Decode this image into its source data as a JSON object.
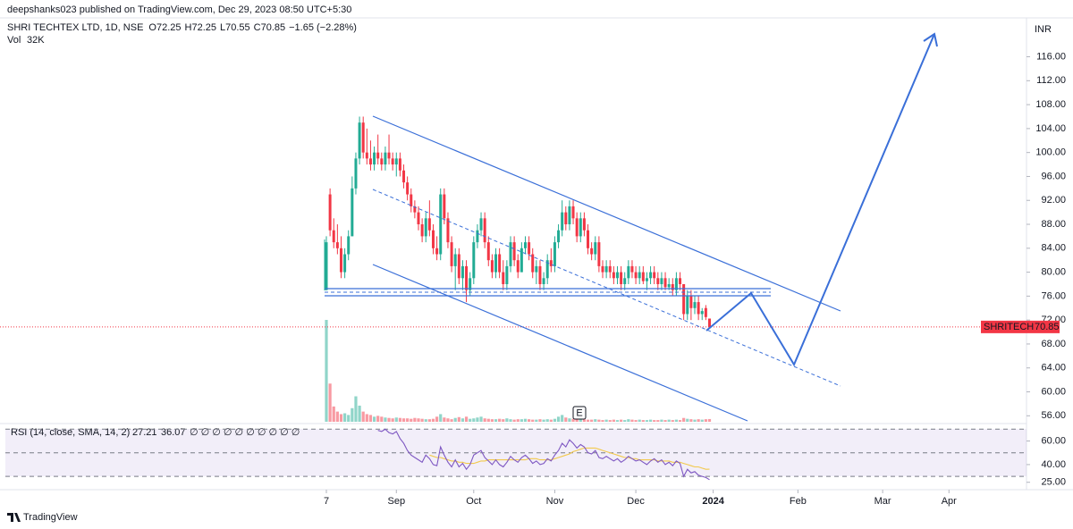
{
  "chart_data": {
    "type": "candlestick",
    "publisher": "deepshanks023 published on TradingView.com, Dec 29, 2023 08:50 UTC+5:30",
    "symbol": "SHRI TECHTEX LTD, 1D, NSE",
    "ohlc_labels": [
      "O",
      "H",
      "L",
      "C"
    ],
    "ohlc": [
      72.25,
      72.25,
      70.55,
      70.85
    ],
    "change_label": "−1.65 (−2.28%)",
    "volume_title": "Vol",
    "volume_last_label": "32K",
    "currency": "INR",
    "last_label": "SHRITECH",
    "up_color": "#22ab94",
    "down_color": "#f23645",
    "ylim": [
      55,
      122.5
    ],
    "yticks": [
      {
        "value": 116,
        "label": "116.00"
      },
      {
        "value": 112,
        "label": "112.00"
      },
      {
        "value": 108,
        "label": "108.00"
      },
      {
        "value": 104,
        "label": "104.00"
      },
      {
        "value": 100,
        "label": "100.00"
      },
      {
        "value": 96,
        "label": "96.00"
      },
      {
        "value": 92,
        "label": "92.00"
      },
      {
        "value": 88,
        "label": "88.00"
      },
      {
        "value": 84,
        "label": "84.00"
      },
      {
        "value": 80,
        "label": "80.00"
      },
      {
        "value": 76,
        "label": "76.00"
      },
      {
        "value": 72,
        "label": "72.00"
      },
      {
        "value": 68,
        "label": "68.00"
      },
      {
        "value": 64,
        "label": "64.00"
      },
      {
        "value": 60,
        "label": "60.00"
      },
      {
        "value": 56,
        "label": "56.00"
      }
    ],
    "xticks": [
      {
        "value": 0,
        "label": "7"
      },
      {
        "value": 19,
        "label": "Sep"
      },
      {
        "value": 40,
        "label": "Oct"
      },
      {
        "value": 62,
        "label": "Nov"
      },
      {
        "value": 84,
        "label": "Dec"
      },
      {
        "value": 105,
        "label": "2024"
      },
      {
        "value": 128,
        "label": "Feb"
      },
      {
        "value": 151,
        "label": "Mar"
      },
      {
        "value": 169,
        "label": "Apr"
      }
    ],
    "earnings_marker": "E",
    "candles": [
      [
        77,
        86,
        77,
        85
      ],
      [
        93,
        94,
        86,
        87
      ],
      [
        87,
        89,
        84,
        85
      ],
      [
        85,
        88,
        83,
        84
      ],
      [
        84,
        86,
        79,
        80
      ],
      [
        80,
        84,
        79,
        83
      ],
      [
        83,
        87,
        82,
        86
      ],
      [
        86,
        96,
        86,
        94
      ],
      [
        94,
        100,
        93,
        99
      ],
      [
        99,
        106,
        98,
        105
      ],
      [
        105,
        106,
        99,
        100
      ],
      [
        100,
        104,
        98,
        99
      ],
      [
        99,
        102,
        97,
        98
      ],
      [
        98,
        101,
        97,
        100
      ],
      [
        100,
        103,
        98,
        99
      ],
      [
        99,
        100,
        97,
        98
      ],
      [
        98,
        101,
        97,
        100
      ],
      [
        100,
        103,
        98,
        99
      ],
      [
        99,
        100,
        97,
        98
      ],
      [
        98,
        100,
        96,
        99
      ],
      [
        99,
        100,
        96,
        97
      ],
      [
        97,
        98,
        94,
        95
      ],
      [
        95,
        96,
        92,
        93
      ],
      [
        93,
        94,
        90,
        91
      ],
      [
        91,
        92,
        89,
        90
      ],
      [
        90,
        91,
        87,
        88
      ],
      [
        88,
        89,
        85,
        86
      ],
      [
        86,
        90,
        85,
        89
      ],
      [
        89,
        92,
        86,
        87
      ],
      [
        87,
        88,
        83,
        84
      ],
      [
        84,
        86,
        82,
        83
      ],
      [
        83,
        94,
        82,
        93
      ],
      [
        93,
        94,
        88,
        89
      ],
      [
        89,
        90,
        84,
        85
      ],
      [
        85,
        86,
        80,
        81
      ],
      [
        81,
        84,
        77,
        83
      ],
      [
        83,
        84,
        78,
        79
      ],
      [
        79,
        82,
        77,
        81
      ],
      [
        81,
        82,
        75,
        77
      ],
      [
        77,
        80,
        76,
        79
      ],
      [
        79,
        86,
        78,
        85
      ],
      [
        85,
        88,
        84,
        87
      ],
      [
        87,
        90,
        86,
        89
      ],
      [
        89,
        90,
        84,
        85
      ],
      [
        85,
        86,
        81,
        82
      ],
      [
        82,
        83,
        79,
        80
      ],
      [
        80,
        84,
        79,
        83
      ],
      [
        83,
        84,
        79,
        80
      ],
      [
        80,
        82,
        77,
        78
      ],
      [
        78,
        82,
        77,
        81
      ],
      [
        81,
        86,
        80,
        85
      ],
      [
        85,
        86,
        81,
        82
      ],
      [
        82,
        83,
        79,
        80
      ],
      [
        80,
        85,
        80,
        84
      ],
      [
        84,
        86,
        83,
        85
      ],
      [
        85,
        86,
        82,
        83
      ],
      [
        83,
        84,
        79,
        80
      ],
      [
        80,
        82,
        78,
        81
      ],
      [
        81,
        82,
        77,
        78
      ],
      [
        78,
        80,
        77,
        79
      ],
      [
        79,
        83,
        78,
        82
      ],
      [
        82,
        84,
        80,
        81
      ],
      [
        81,
        86,
        80,
        85
      ],
      [
        85,
        88,
        84,
        87
      ],
      [
        87,
        92,
        86,
        90
      ],
      [
        90,
        91,
        87,
        88
      ],
      [
        88,
        92,
        87,
        91
      ],
      [
        91,
        92,
        88,
        89
      ],
      [
        89,
        90,
        85,
        86
      ],
      [
        86,
        90,
        85,
        89
      ],
      [
        89,
        90,
        86,
        87
      ],
      [
        87,
        88,
        83,
        84
      ],
      [
        84,
        85,
        82,
        83
      ],
      [
        83,
        86,
        82,
        85
      ],
      [
        85,
        86,
        80,
        81
      ],
      [
        81,
        82,
        79,
        80
      ],
      [
        80,
        82,
        79,
        81
      ],
      [
        81,
        82,
        79,
        80
      ],
      [
        80,
        81,
        78,
        79
      ],
      [
        79,
        81,
        78,
        80
      ],
      [
        80,
        81,
        77,
        78
      ],
      [
        78,
        80,
        77,
        79
      ],
      [
        79,
        82,
        78,
        81
      ],
      [
        81,
        82,
        79,
        80
      ],
      [
        80,
        81,
        78,
        79
      ],
      [
        79,
        81,
        78,
        80
      ],
      [
        80,
        81,
        78,
        78.5
      ],
      [
        78.5,
        80,
        77,
        79
      ],
      [
        79,
        81,
        78,
        80
      ],
      [
        80,
        81,
        78,
        79
      ],
      [
        79,
        80,
        77,
        78
      ],
      [
        78,
        80,
        77,
        79
      ],
      [
        79,
        80,
        77,
        77.5
      ],
      [
        77.5,
        79,
        77,
        78
      ],
      [
        78,
        79,
        76,
        77
      ],
      [
        77,
        80,
        76,
        79
      ],
      [
        79,
        80,
        77,
        78
      ],
      [
        78,
        78,
        72,
        73
      ],
      [
        73,
        77,
        72,
        76
      ],
      [
        76,
        77,
        72,
        74
      ],
      [
        74,
        76,
        73,
        75
      ],
      [
        75,
        76,
        72,
        73
      ],
      [
        73,
        74,
        72,
        73.5
      ],
      [
        74,
        74.5,
        72,
        72.5
      ],
      [
        72.25,
        72.25,
        70.55,
        70.85
      ]
    ],
    "volumes": [
      1200,
      450,
      180,
      120,
      90,
      100,
      80,
      160,
      300,
      190,
      120,
      90,
      80,
      60,
      70,
      60,
      50,
      45,
      40,
      50,
      45,
      40,
      40,
      35,
      45,
      40,
      35,
      30,
      30,
      35,
      60,
      90,
      50,
      40,
      30,
      45,
      55,
      40,
      60,
      35,
      40,
      50,
      60,
      40,
      35,
      30,
      30,
      35,
      30,
      40,
      30,
      25,
      30,
      30,
      35,
      30,
      25,
      25,
      30,
      25,
      30,
      25,
      35,
      60,
      80,
      50,
      40,
      35,
      30,
      30,
      30,
      25,
      25,
      30,
      25,
      20,
      25,
      20,
      25,
      20,
      25,
      20,
      30,
      25,
      20,
      25,
      20,
      20,
      25,
      20,
      20,
      25,
      20,
      25,
      20,
      25,
      20,
      45,
      35,
      30,
      25,
      30,
      25,
      30,
      32
    ],
    "rsi": {
      "title": "RSI (14, close, SMA, 14, 2)",
      "color": "#7e57c2",
      "sma_color": "#f2c94c",
      "ylim": [
        21,
        74
      ],
      "yticks": [
        {
          "value": 60,
          "label": "60.00"
        },
        {
          "value": 40,
          "label": "40.00"
        },
        {
          "value": 25,
          "label": "25.00"
        }
      ],
      "bands": [
        70,
        50,
        30
      ],
      "values": [
        null,
        null,
        null,
        null,
        null,
        null,
        null,
        null,
        null,
        null,
        null,
        null,
        null,
        null,
        69,
        68,
        70,
        67,
        66,
        68,
        62,
        58,
        52,
        48,
        46,
        44,
        42,
        48,
        45,
        40,
        39,
        55,
        48,
        42,
        38,
        44,
        38,
        41,
        36,
        40,
        48,
        50,
        52,
        46,
        43,
        40,
        44,
        40,
        38,
        42,
        47,
        44,
        42,
        46,
        48,
        45,
        41,
        43,
        40,
        41,
        45,
        43,
        48,
        52,
        58,
        55,
        61,
        58,
        54,
        57,
        55,
        50,
        49,
        52,
        46,
        45,
        47,
        45,
        43,
        45,
        42,
        44,
        47,
        45,
        43,
        44,
        42,
        40,
        43,
        45,
        42,
        44,
        40,
        42,
        39,
        43,
        41,
        30,
        36,
        33,
        34,
        31,
        30,
        29,
        27.21
      ],
      "sma": [
        null,
        null,
        null,
        null,
        null,
        null,
        null,
        null,
        null,
        null,
        null,
        null,
        null,
        null,
        null,
        null,
        null,
        null,
        null,
        null,
        null,
        null,
        null,
        null,
        null,
        null,
        null,
        null,
        48,
        47,
        46,
        46,
        45,
        44,
        43,
        43,
        42,
        42,
        41,
        41,
        41,
        42,
        43,
        43,
        44,
        44,
        44,
        44,
        44,
        44,
        44,
        44,
        44,
        44,
        44,
        45,
        45,
        45,
        44,
        44,
        44,
        44,
        45,
        46,
        47,
        48,
        49,
        51,
        52,
        53,
        54,
        54,
        54,
        54,
        53,
        52,
        51,
        50,
        49,
        48,
        47,
        46,
        46,
        45,
        45,
        44,
        44,
        44,
        44,
        44,
        43,
        43,
        43,
        43,
        42,
        42,
        42,
        41,
        40,
        39,
        38,
        38,
        37,
        36,
        36.07
      ]
    },
    "brand": "TradingView"
  }
}
